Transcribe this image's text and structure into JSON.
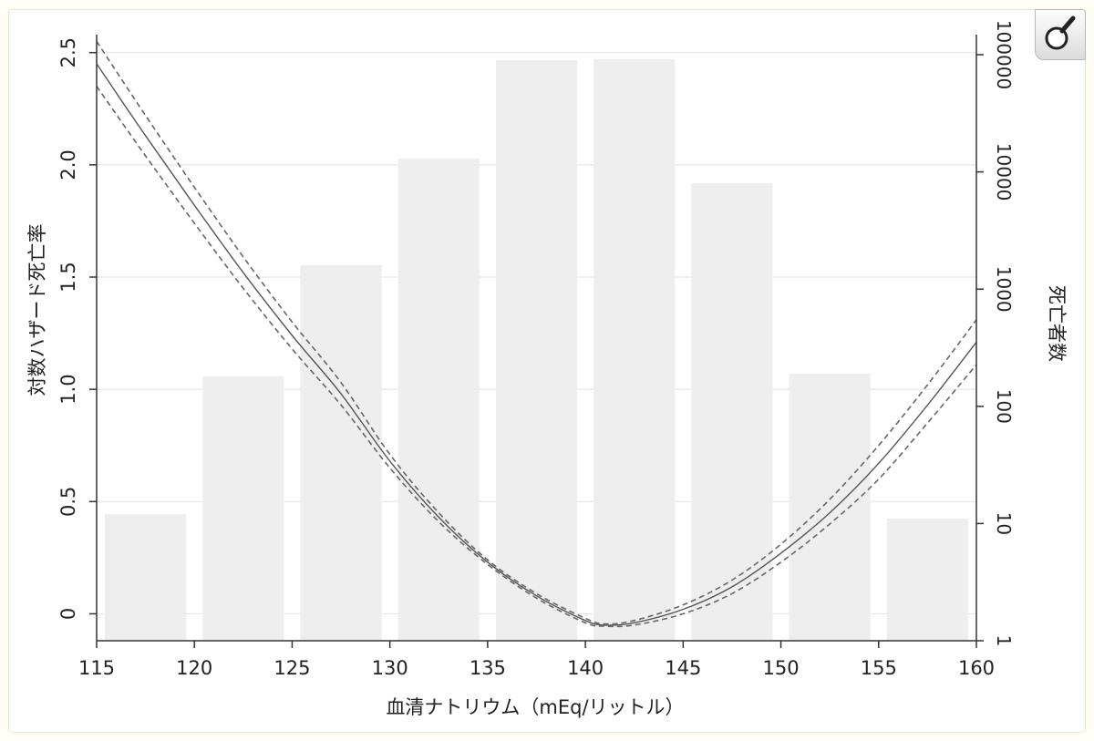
{
  "chart_data": {
    "type": "bar",
    "title": "",
    "xlabel": "血清ナトリウム（mEq/リットル）",
    "ylabel": "対数ハザード死亡率",
    "y2label": "死亡者数",
    "xlim": [
      115,
      160
    ],
    "ylim": [
      -0.12,
      2.58
    ],
    "y2_scale": "log",
    "y2lim": [
      1,
      100000
    ],
    "grid": true,
    "x_ticks": [
      "115",
      "120",
      "125",
      "130",
      "135",
      "140",
      "145",
      "150",
      "155",
      "160"
    ],
    "y_ticks": [
      "0",
      "0.5",
      "1.0",
      "1.5",
      "2.0",
      "2.5"
    ],
    "y2_ticks": [
      "1",
      "10",
      "100",
      "1000",
      "10000",
      "100000"
    ],
    "bars": {
      "axis": "right",
      "bin_width": 5,
      "x": [
        117.5,
        122.5,
        127.5,
        132.5,
        137.5,
        142.5,
        147.5,
        152.5,
        157.5
      ],
      "values": [
        12,
        180,
        1600,
        13000,
        90000,
        92000,
        8000,
        190,
        11
      ],
      "color": "#eeeeee"
    },
    "series": [
      {
        "role": "estimate",
        "style": "solid",
        "x": [
          115,
          117.5,
          120,
          122.5,
          125,
          127.5,
          130,
          132.5,
          135,
          137.5,
          140,
          141,
          142.5,
          145,
          147.5,
          150,
          152.5,
          155,
          157.5,
          160
        ],
        "values": [
          2.45,
          2.13,
          1.82,
          1.52,
          1.24,
          0.98,
          0.68,
          0.43,
          0.23,
          0.08,
          -0.03,
          -0.05,
          -0.04,
          0.02,
          0.12,
          0.27,
          0.45,
          0.67,
          0.93,
          1.21
        ]
      },
      {
        "role": "upper-ci",
        "style": "dashed",
        "x": [
          115,
          117.5,
          120,
          122.5,
          125,
          127.5,
          130,
          132.5,
          135,
          137.5,
          140,
          141,
          142.5,
          145,
          147.5,
          150,
          152.5,
          155,
          157.5,
          160
        ],
        "values": [
          2.55,
          2.22,
          1.9,
          1.59,
          1.3,
          1.03,
          0.71,
          0.45,
          0.24,
          0.09,
          -0.02,
          -0.045,
          -0.03,
          0.04,
          0.15,
          0.31,
          0.51,
          0.75,
          1.02,
          1.31
        ]
      },
      {
        "role": "lower-ci",
        "style": "dashed",
        "x": [
          115,
          117.5,
          120,
          122.5,
          125,
          127.5,
          130,
          132.5,
          135,
          137.5,
          140,
          141,
          142.5,
          145,
          147.5,
          150,
          152.5,
          155,
          157.5,
          160
        ],
        "values": [
          2.35,
          2.04,
          1.74,
          1.45,
          1.18,
          0.93,
          0.65,
          0.41,
          0.22,
          0.07,
          -0.04,
          -0.055,
          -0.05,
          0.0,
          0.09,
          0.23,
          0.4,
          0.6,
          0.85,
          1.11
        ]
      }
    ]
  },
  "colors": {
    "bar": "#eeeeee",
    "line": "#555555",
    "ci_line": "#666666",
    "grid": "#e6e6e6",
    "axis": "#333333"
  },
  "toolbar": {
    "zoom_icon": "magnifier-icon"
  }
}
